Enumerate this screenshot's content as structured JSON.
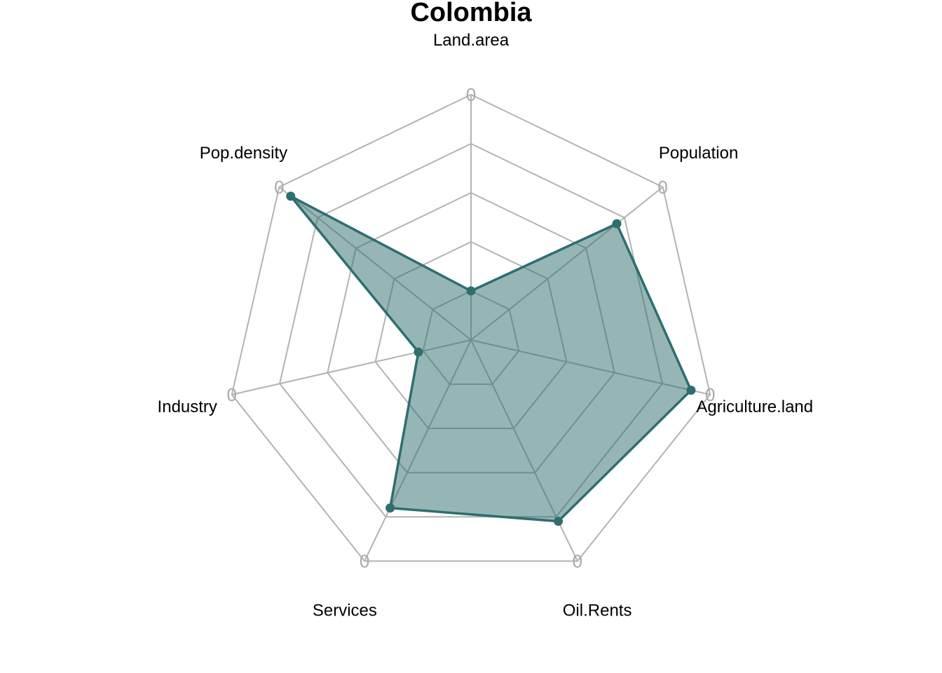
{
  "chart_data": {
    "type": "radar",
    "title": "Colombia",
    "axes": [
      "Land.area",
      "Population",
      "Agriculture.land",
      "Oil.Rents",
      "Services",
      "Industry",
      "Pop.density"
    ],
    "ticks": [
      0,
      0.2,
      0.4,
      0.6,
      0.8,
      1.0
    ],
    "tick_labels": [
      "0",
      "0",
      "0",
      "0",
      "0",
      "0",
      "0"
    ],
    "range": [
      0,
      1
    ],
    "grid_levels": 5,
    "series": [
      {
        "name": "Colombia",
        "values": [
          0.2,
          0.76,
          0.92,
          0.82,
          0.76,
          0.22,
          0.94
        ],
        "color": "#2e6e6e",
        "fill": "#2e6e6e"
      }
    ],
    "colors": {
      "grid": "#b3b3b3",
      "tick_label": "#aaaaaa"
    }
  }
}
